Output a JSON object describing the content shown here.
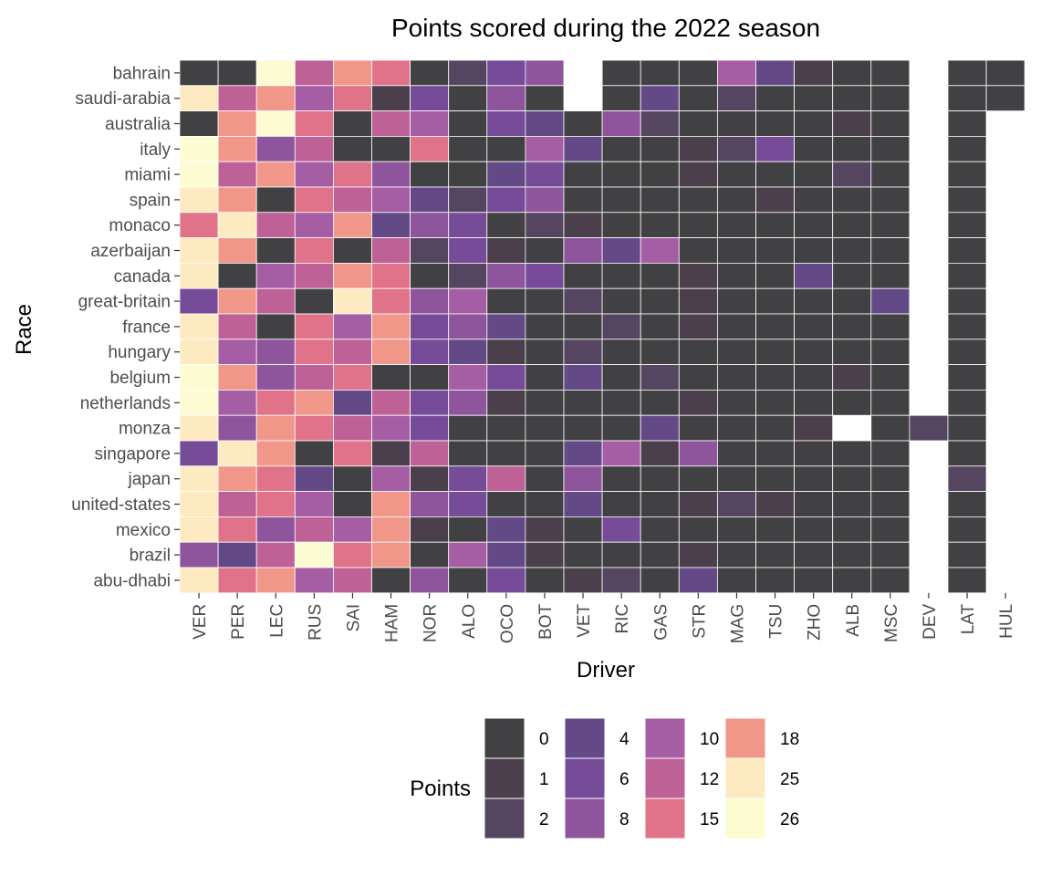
{
  "chart_data": {
    "type": "heatmap",
    "title": "Points scored during the 2022 season",
    "xlabel": "Driver",
    "ylabel": "Race",
    "legend_title": "Points",
    "legend_placement": "bottom",
    "grid": false,
    "drivers": [
      "VER",
      "PER",
      "LEC",
      "RUS",
      "SAI",
      "HAM",
      "NOR",
      "ALO",
      "OCO",
      "BOT",
      "VET",
      "RIC",
      "GAS",
      "STR",
      "MAG",
      "TSU",
      "ZHO",
      "ALB",
      "MSC",
      "DEV",
      "LAT",
      "HUL"
    ],
    "races": [
      "bahrain",
      "saudi-arabia",
      "australia",
      "italy",
      "miami",
      "spain",
      "monaco",
      "azerbaijan",
      "canada",
      "great-britain",
      "france",
      "hungary",
      "belgium",
      "netherlands",
      "monza",
      "singapore",
      "japan",
      "united-states",
      "mexico",
      "brazil",
      "abu-dhabi"
    ],
    "values": [
      [
        0,
        0,
        26,
        12,
        18,
        15,
        0,
        2,
        6,
        8,
        null,
        0,
        0,
        0,
        10,
        4,
        1,
        0,
        0,
        null,
        0,
        0
      ],
      [
        25,
        12,
        18,
        10,
        15,
        1,
        6,
        0,
        8,
        0,
        null,
        0,
        4,
        0,
        2,
        0,
        0,
        0,
        0,
        null,
        0,
        0
      ],
      [
        0,
        18,
        26,
        15,
        0,
        12,
        10,
        0,
        6,
        4,
        0,
        8,
        2,
        0,
        0,
        0,
        0,
        1,
        0,
        null,
        0,
        null
      ],
      [
        26,
        18,
        8,
        12,
        0,
        0,
        15,
        0,
        0,
        10,
        4,
        0,
        0,
        1,
        2,
        6,
        0,
        0,
        0,
        null,
        0,
        null
      ],
      [
        26,
        12,
        18,
        10,
        15,
        8,
        0,
        0,
        4,
        6,
        0,
        0,
        0,
        1,
        0,
        0,
        0,
        2,
        0,
        null,
        0,
        null
      ],
      [
        25,
        18,
        0,
        15,
        12,
        10,
        4,
        2,
        6,
        8,
        0,
        0,
        0,
        0,
        0,
        1,
        0,
        0,
        0,
        null,
        0,
        null
      ],
      [
        15,
        25,
        12,
        10,
        18,
        4,
        8,
        6,
        0,
        2,
        1,
        0,
        0,
        0,
        0,
        0,
        0,
        0,
        0,
        null,
        0,
        null
      ],
      [
        25,
        18,
        0,
        15,
        0,
        12,
        2,
        6,
        1,
        0,
        8,
        4,
        10,
        0,
        0,
        0,
        0,
        0,
        0,
        null,
        0,
        null
      ],
      [
        25,
        0,
        10,
        12,
        18,
        15,
        0,
        2,
        8,
        6,
        0,
        0,
        0,
        1,
        0,
        0,
        4,
        0,
        0,
        null,
        0,
        null
      ],
      [
        6,
        18,
        12,
        0,
        25,
        15,
        8,
        10,
        0,
        0,
        2,
        0,
        0,
        1,
        0,
        0,
        0,
        0,
        4,
        null,
        0,
        null
      ],
      [
        25,
        12,
        0,
        15,
        10,
        18,
        6,
        8,
        4,
        0,
        0,
        2,
        0,
        1,
        0,
        0,
        0,
        0,
        0,
        null,
        0,
        null
      ],
      [
        25,
        10,
        8,
        15,
        12,
        18,
        6,
        4,
        1,
        0,
        2,
        0,
        0,
        0,
        0,
        0,
        0,
        0,
        0,
        null,
        0,
        null
      ],
      [
        26,
        18,
        8,
        12,
        15,
        0,
        0,
        10,
        6,
        0,
        4,
        0,
        2,
        0,
        0,
        0,
        0,
        1,
        0,
        null,
        0,
        null
      ],
      [
        26,
        10,
        15,
        18,
        4,
        12,
        6,
        8,
        1,
        0,
        0,
        0,
        0,
        1,
        0,
        0,
        0,
        0,
        0,
        null,
        0,
        null
      ],
      [
        25,
        8,
        18,
        15,
        12,
        10,
        6,
        0,
        0,
        0,
        0,
        0,
        4,
        0,
        0,
        0,
        1,
        null,
        0,
        2,
        0,
        null
      ],
      [
        6,
        25,
        18,
        0,
        15,
        1,
        12,
        0,
        0,
        0,
        4,
        10,
        1,
        8,
        0,
        0,
        0,
        0,
        0,
        null,
        0,
        null
      ],
      [
        25,
        18,
        15,
        4,
        0,
        10,
        1,
        6,
        12,
        0,
        8,
        0,
        0,
        0,
        0,
        0,
        0,
        0,
        0,
        null,
        2,
        null
      ],
      [
        25,
        12,
        15,
        10,
        0,
        18,
        8,
        6,
        0,
        0,
        4,
        0,
        0,
        1,
        2,
        1,
        0,
        0,
        0,
        null,
        0,
        null
      ],
      [
        25,
        15,
        8,
        12,
        10,
        18,
        1,
        0,
        4,
        1,
        0,
        6,
        0,
        0,
        0,
        0,
        0,
        0,
        0,
        null,
        0,
        null
      ],
      [
        8,
        4,
        12,
        26,
        15,
        18,
        0,
        10,
        4,
        1,
        0,
        0,
        0,
        1,
        0,
        0,
        0,
        0,
        0,
        null,
        0,
        null
      ],
      [
        25,
        15,
        18,
        10,
        12,
        0,
        8,
        0,
        6,
        0,
        1,
        2,
        0,
        4,
        0,
        0,
        0,
        0,
        0,
        null,
        0,
        null
      ]
    ],
    "legend": [
      {
        "label": "0",
        "color": "#414042"
      },
      {
        "label": "1",
        "color": "#4b3f4c"
      },
      {
        "label": "2",
        "color": "#554560"
      },
      {
        "label": "4",
        "color": "#634a87"
      },
      {
        "label": "6",
        "color": "#764b98"
      },
      {
        "label": "8",
        "color": "#8e549c"
      },
      {
        "label": "10",
        "color": "#a55da3"
      },
      {
        "label": "12",
        "color": "#bd6197"
      },
      {
        "label": "15",
        "color": "#e07289"
      },
      {
        "label": "18",
        "color": "#f1978a"
      },
      {
        "label": "25",
        "color": "#fdeac1"
      },
      {
        "label": "26",
        "color": "#fcfbd2"
      }
    ]
  }
}
